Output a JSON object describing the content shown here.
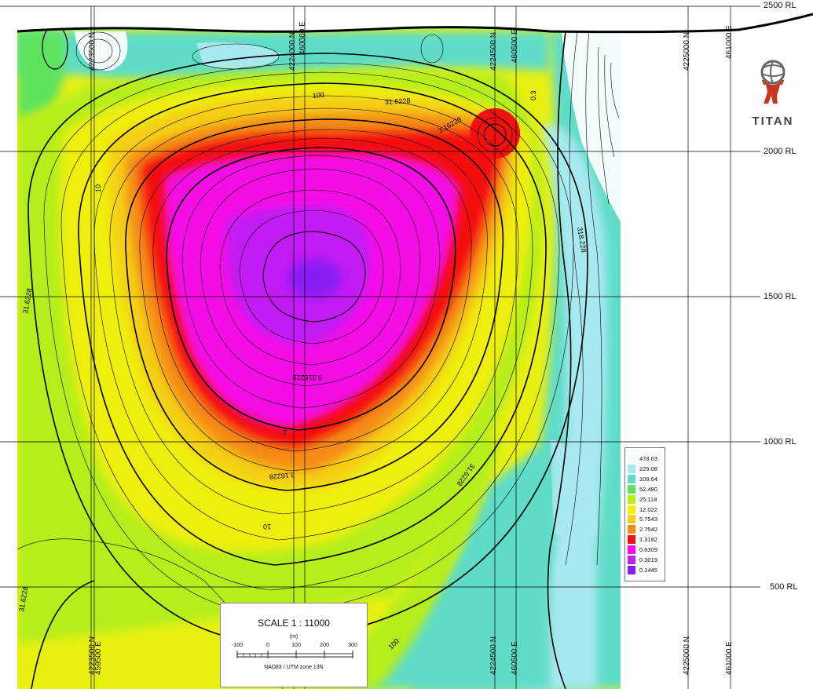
{
  "map": {
    "rl_labels": [
      "2500 RL",
      "2000 RL",
      "1500 RL",
      "1000 RL",
      "500 RL"
    ],
    "top_axis_labels": [
      "4223500 N",
      "4224000 N",
      "460000 E",
      "4224500 N",
      "460500 E",
      "4225000 N",
      "461000 E"
    ],
    "bottom_axis_labels": [
      "4223500 N",
      "459500 E",
      "4224500 N",
      "460500 E",
      "4225000 N",
      "461000 E"
    ],
    "contour_labels": [
      "100",
      "31.6228",
      "3.16228",
      "10",
      "318.228",
      "31.6228",
      "0.316228",
      "1",
      "3.16228",
      "10",
      "31.6228",
      "31.6228",
      "100",
      "0.3"
    ]
  },
  "legend": {
    "entries": [
      {
        "label": "478.63",
        "color": "#f3fbfd"
      },
      {
        "label": "229.08",
        "color": "#a8e9f0"
      },
      {
        "label": "109.64",
        "color": "#5fdcc8"
      },
      {
        "label": "52.480",
        "color": "#5fe35f"
      },
      {
        "label": "25.118",
        "color": "#b5ee1c"
      },
      {
        "label": "12.022",
        "color": "#efef10"
      },
      {
        "label": "5.7543",
        "color": "#f5cf14"
      },
      {
        "label": "2.7542",
        "color": "#f58b14"
      },
      {
        "label": "1.3182",
        "color": "#f51010"
      },
      {
        "label": "0.6309",
        "color": "#f50ce6"
      },
      {
        "label": "0.3019",
        "color": "#c21ef5"
      },
      {
        "label": "0.1445",
        "color": "#8a1ef5"
      }
    ]
  },
  "scale": {
    "title": "SCALE  1 : 11000",
    "unit": "(m)",
    "ticks": [
      "-100",
      "0",
      "100",
      "200",
      "300"
    ],
    "projection": "NAD83 / UTM zone 13N"
  },
  "logo": {
    "text": "TITAN"
  },
  "colors": {
    "accent": "#c8361e",
    "grid": "#000000"
  }
}
